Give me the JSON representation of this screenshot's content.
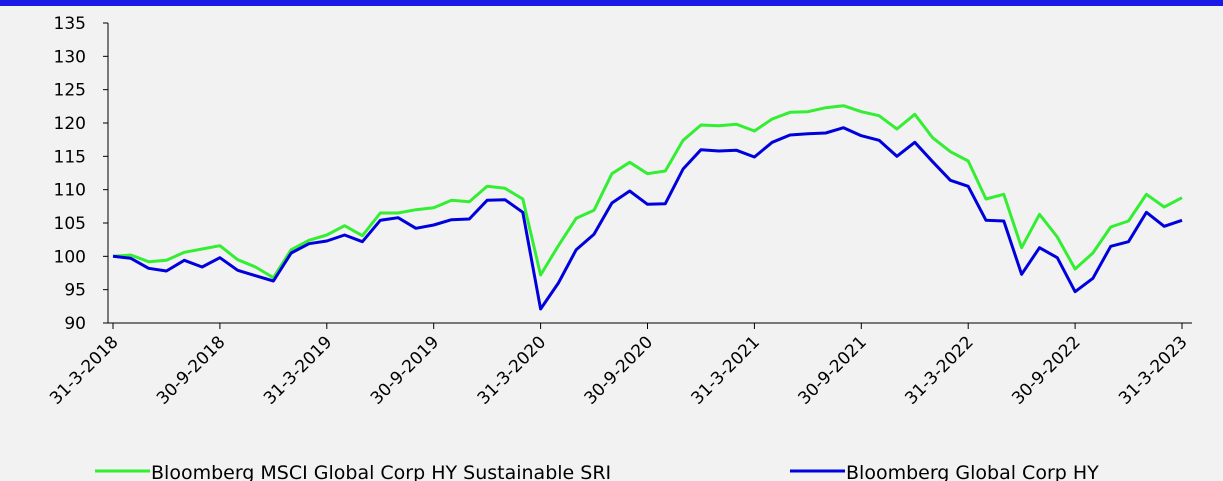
{
  "chart_data": {
    "type": "line",
    "categories": [
      "31-3-2018",
      null,
      null,
      null,
      null,
      null,
      "30-9-2018",
      null,
      null,
      null,
      null,
      null,
      "31-3-2019",
      null,
      null,
      null,
      null,
      null,
      "30-9-2019",
      null,
      null,
      null,
      null,
      null,
      "31-3-2020",
      null,
      null,
      null,
      null,
      null,
      "30-9-2020",
      null,
      null,
      null,
      null,
      null,
      "31-3-2021",
      null,
      null,
      null,
      null,
      null,
      "30-9-2021",
      null,
      null,
      null,
      null,
      null,
      "31-3-2022",
      null,
      null,
      null,
      null,
      null,
      "30-9-2022",
      null,
      null,
      null,
      null,
      null,
      "31-3-2023"
    ],
    "series": [
      {
        "name": "Bloomberg MSCI Global Corp HY Sustainable SRI",
        "color": "#33ee33",
        "values": [
          100,
          100.2,
          99.2,
          99.4,
          100.6,
          101.1,
          101.6,
          99.5,
          98.4,
          96.8,
          101,
          102.4,
          103.2,
          104.6,
          103.1,
          106.5,
          106.5,
          107,
          107.3,
          108.4,
          108.2,
          110.5,
          110.2,
          108.6,
          97.2,
          101.6,
          105.7,
          106.9,
          112.4,
          114.1,
          112.4,
          112.8,
          117.4,
          119.7,
          119.6,
          119.8,
          118.8,
          120.6,
          121.6,
          121.7,
          122.3,
          122.6,
          121.7,
          121.1,
          119.1,
          121.3,
          117.8,
          115.7,
          114.3,
          108.6,
          109.3,
          101.3,
          106.3,
          102.9,
          98.1,
          100.5,
          104.4,
          105.3,
          109.3,
          107.4,
          108.8
        ]
      },
      {
        "name": "Bloomberg Global Corp HY",
        "color": "#0000dd",
        "values": [
          100,
          99.7,
          98.2,
          97.8,
          99.4,
          98.4,
          99.8,
          97.9,
          97.1,
          96.3,
          100.5,
          101.9,
          102.3,
          103.2,
          102.2,
          105.4,
          105.8,
          104.2,
          104.7,
          105.5,
          105.6,
          108.4,
          108.5,
          106.6,
          92.1,
          96,
          101,
          103.3,
          108,
          109.8,
          107.8,
          107.9,
          113.1,
          116,
          115.8,
          115.9,
          114.9,
          117.1,
          118.2,
          118.4,
          118.5,
          119.3,
          118.1,
          117.4,
          115,
          117.1,
          114.2,
          111.4,
          110.5,
          105.4,
          105.3,
          97.3,
          101.3,
          99.8,
          94.7,
          96.7,
          101.5,
          102.2,
          106.6,
          104.5,
          105.4
        ]
      }
    ],
    "ylim": [
      90,
      135
    ],
    "yticks": [
      90,
      95,
      100,
      105,
      110,
      115,
      120,
      125,
      130,
      135
    ]
  }
}
